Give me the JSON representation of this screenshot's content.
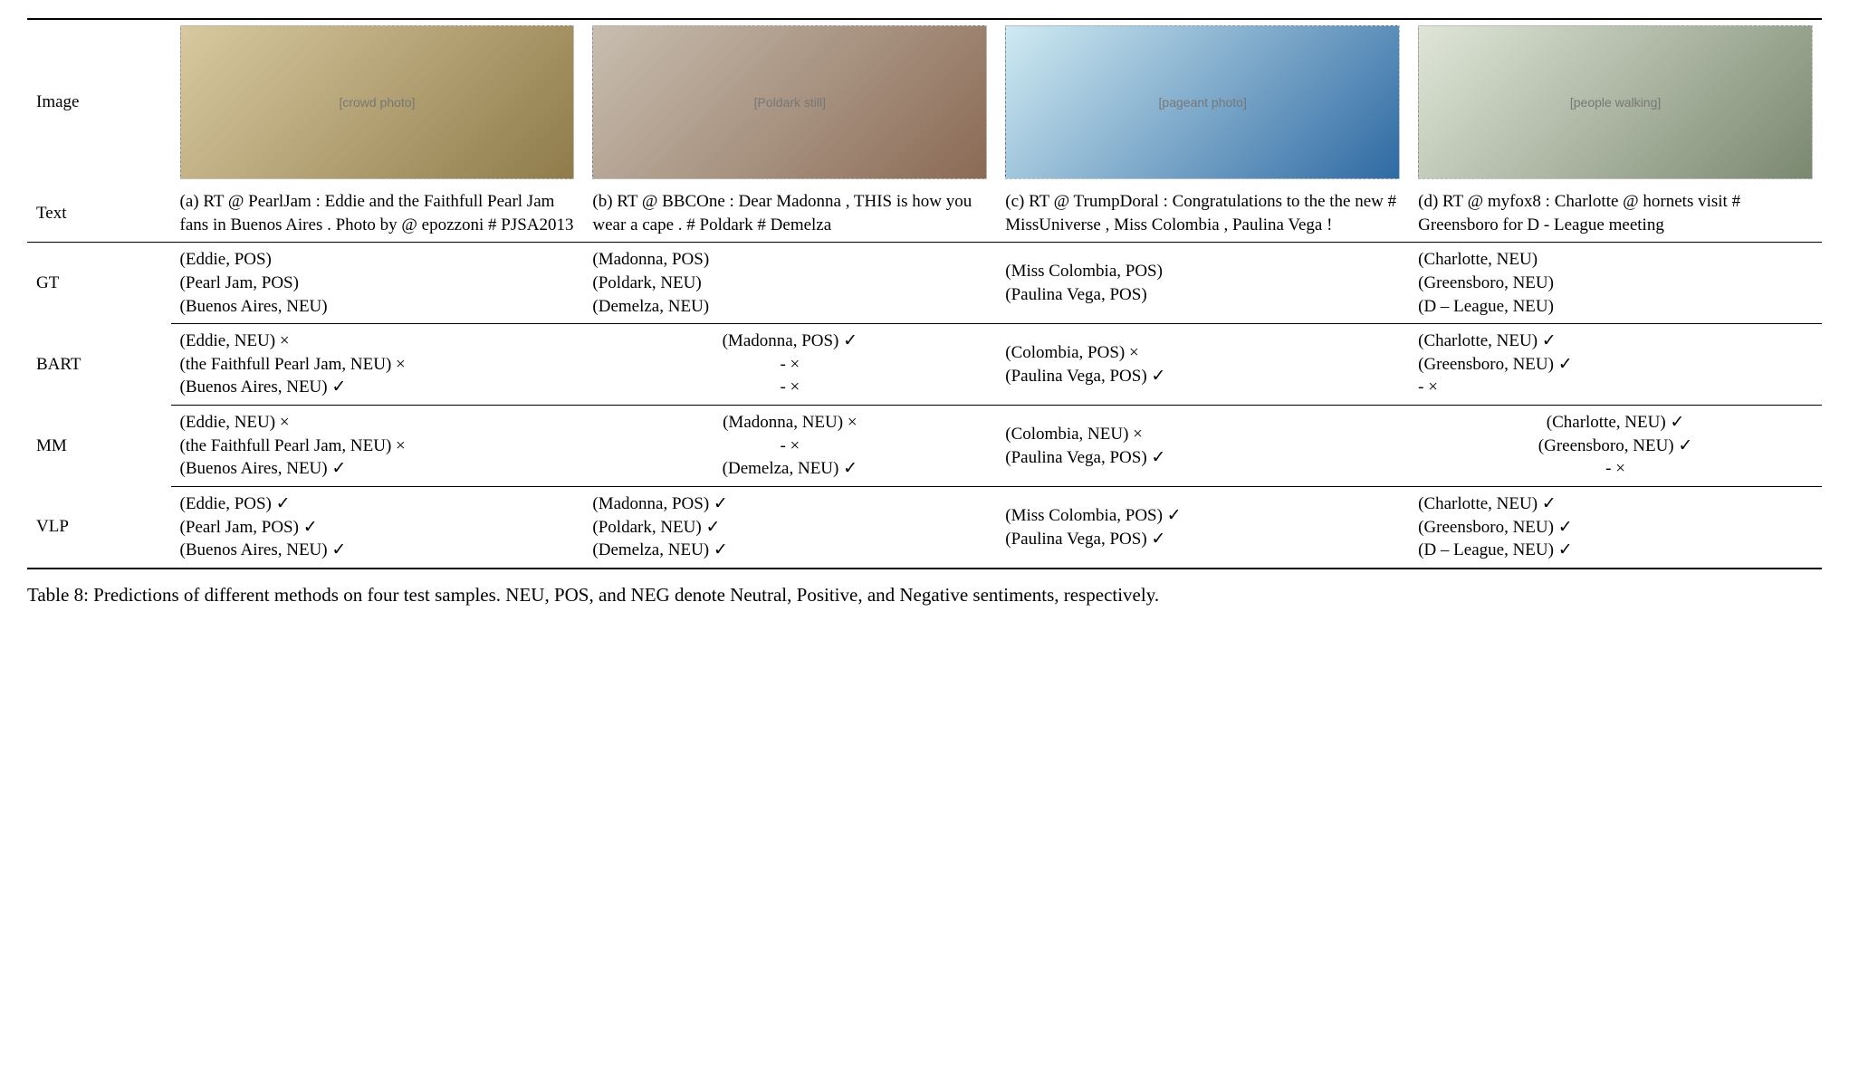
{
  "row_labels": {
    "image": "Image",
    "text": "Text",
    "gt": "GT",
    "bart": "BART",
    "mm": "MM",
    "vlp": "VLP"
  },
  "image_placeholders": {
    "a": "[crowd photo]",
    "b": "[Poldark still]",
    "c": "[pageant photo]",
    "d": "[people walking]"
  },
  "texts": {
    "a": "(a) RT @ PearlJam : Eddie and the Faithfull Pearl Jam fans in Buenos Aires .   Photo by @ epozzoni # PJSA2013",
    "b": "(b) RT @ BBCOne :   Dear Madonna , THIS is how you wear a cape . # Poldark # Demelza",
    "c": "(c) RT @ TrumpDoral : Congratulations to the the new # MissUniverse , Miss Colombia , Paulina Vega !",
    "d": "(d) RT @ myfox8 : Charlotte @ hornets visit # Greensboro for D - League meeting"
  },
  "gt": {
    "a": [
      "(Eddie, POS)",
      "(Pearl Jam, POS)",
      "(Buenos Aires, NEU)"
    ],
    "b": [
      "(Madonna, POS)",
      "(Poldark, NEU)",
      "(Demelza, NEU)"
    ],
    "c": [
      "(Miss Colombia, POS)",
      "(Paulina Vega, POS)"
    ],
    "d": [
      "(Charlotte, NEU)",
      "(Greensboro, NEU)",
      "(D – League, NEU)"
    ]
  },
  "bart": {
    "a": [
      "(Eddie, NEU) ×",
      "(the Faithfull Pearl Jam, NEU) ×",
      "(Buenos Aires, NEU) ✓"
    ],
    "b": [
      "(Madonna, POS) ✓",
      "- ×",
      "- ×"
    ],
    "c": [
      "(Colombia, POS) ×",
      "(Paulina Vega, POS) ✓"
    ],
    "d": [
      "(Charlotte, NEU) ✓",
      "(Greensboro, NEU) ✓",
      "- ×"
    ]
  },
  "mm": {
    "a": [
      "(Eddie, NEU) ×",
      "(the Faithfull Pearl Jam, NEU) ×",
      "(Buenos Aires, NEU) ✓"
    ],
    "b": [
      "(Madonna, NEU) ×",
      "- ×",
      "(Demelza, NEU) ✓"
    ],
    "c": [
      "(Colombia, NEU) ×",
      "(Paulina Vega, POS) ✓"
    ],
    "d": [
      "(Charlotte, NEU) ✓",
      "(Greensboro, NEU) ✓",
      "- ×"
    ]
  },
  "vlp": {
    "a": [
      "(Eddie, POS) ✓",
      "(Pearl Jam, POS) ✓",
      "(Buenos Aires, NEU) ✓"
    ],
    "b": [
      "(Madonna, POS) ✓",
      "(Poldark, NEU) ✓",
      "(Demelza, NEU) ✓"
    ],
    "c": [
      "(Miss Colombia, POS) ✓",
      "(Paulina Vega, POS) ✓"
    ],
    "d": [
      "(Charlotte, NEU) ✓",
      "(Greensboro, NEU) ✓",
      "(D – League, NEU) ✓"
    ]
  },
  "caption": "Table 8: Predictions of different methods on four test samples. NEU, POS, and NEG denote Neutral, Positive, and Negative sentiments, respectively.",
  "cell_align": {
    "gt": {
      "a": "left",
      "b": "left",
      "c": "left",
      "d": "left"
    },
    "bart": {
      "a": "left",
      "b": "center",
      "c": "left",
      "d": "left"
    },
    "mm": {
      "a": "left",
      "b": "center",
      "c": "left",
      "d": "center"
    },
    "vlp": {
      "a": "left",
      "b": "left",
      "c": "left",
      "d": "left"
    }
  }
}
